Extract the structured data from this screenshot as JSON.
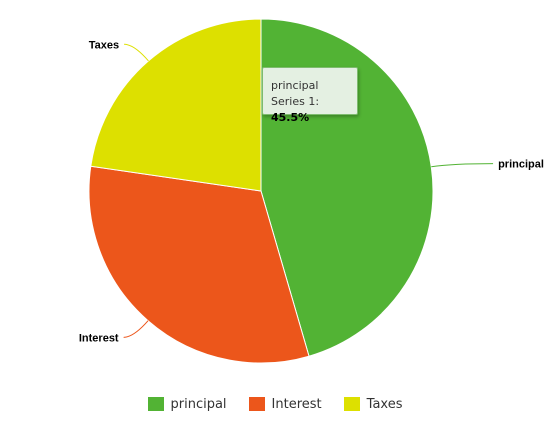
{
  "chart_data": {
    "type": "pie",
    "title": "",
    "categories": [
      "principal",
      "Interest",
      "Taxes"
    ],
    "series": [
      {
        "name": "Series 1",
        "values": [
          45.5,
          31.8,
          22.7
        ]
      }
    ],
    "colors": [
      "#52b334",
      "#ec561b",
      "#dde000"
    ],
    "start_angle_deg": 0,
    "direction": "clockwise",
    "legend_position": "bottom-center",
    "data_labels": "outside-with-connectors"
  },
  "tooltip": {
    "category": "principal",
    "series_label": "Series 1:",
    "value_text": "45.5%"
  },
  "legend": {
    "items": [
      {
        "label": "principal",
        "color": "#52b334"
      },
      {
        "label": "Interest",
        "color": "#ec561b"
      },
      {
        "label": "Taxes",
        "color": "#dde000"
      }
    ]
  }
}
